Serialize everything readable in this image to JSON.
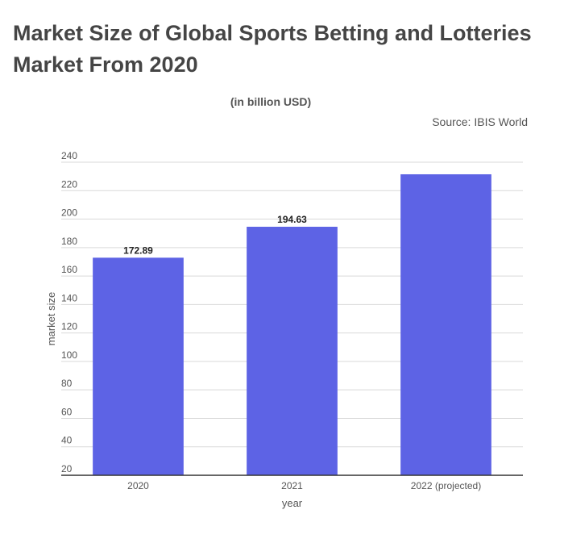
{
  "header": {
    "title": "Market Size of Global Sports Betting and Lotteries Market From 2020",
    "subtitle": "(in billion USD)",
    "source": "Source: IBIS World"
  },
  "chart_data": {
    "type": "bar",
    "title": "Market Size of Global Sports Betting and Lotteries Market From 2020",
    "subtitle": "(in billion USD)",
    "xlabel": "year",
    "ylabel": "market size",
    "categories": [
      "2020",
      "2021",
      "2022 (projected)"
    ],
    "series": [
      {
        "values": [
          172.89,
          194.63,
          231.5
        ],
        "data_labels": [
          "172.89",
          "194.63",
          ""
        ],
        "color": "#5d63e5"
      }
    ],
    "ylim": [
      20,
      240
    ],
    "yticks": [
      20,
      40,
      60,
      80,
      100,
      120,
      140,
      160,
      180,
      200,
      220,
      240
    ],
    "grid": true,
    "legend": "none"
  }
}
